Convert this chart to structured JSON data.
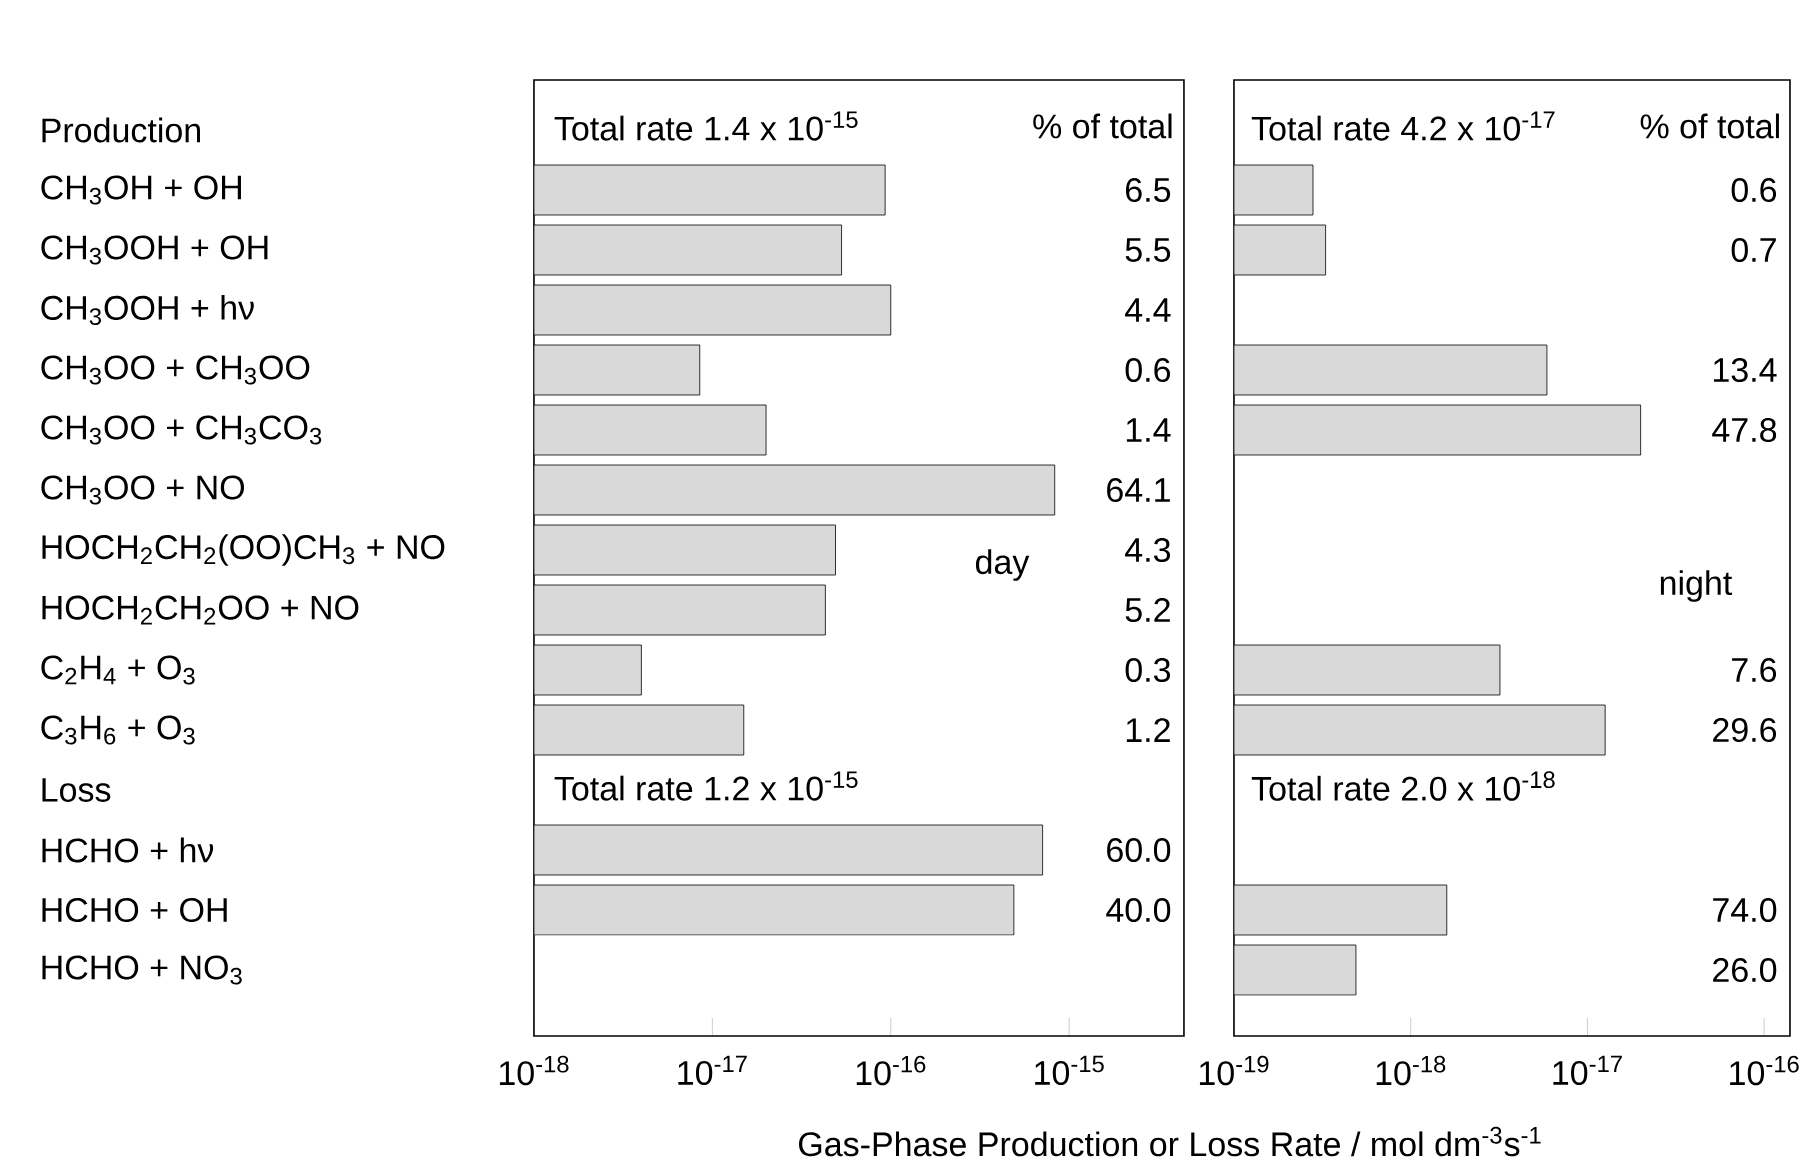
{
  "chart_data": [
    {
      "type": "bar",
      "orientation": "horizontal",
      "log": "x",
      "color": "#d9d9d9",
      "categories": [
        "Production",
        "CH$_{3}$OH + OH",
        "CH$_{3}$OOH + OH",
        "CH$_{3}$OOH + hν",
        "CH$_{3}$OO + CH$_{3}$OO",
        "CH$_{3}$OO + CH$_{3}$CO$_{3}$",
        "CH$_{3}$OO + NO",
        "HOCH$_{2}$CH$_{2}$(OO)CH$_{3}$ + NO",
        "HOCH$_{2}$CH$_{2}$OO + NO",
        "C$_{2}$H$_{4}$ + O$_{3}$",
        "C$_{3}$H$_{6}$ + O$_{3}$",
        "Loss",
        "HCHO + hν",
        "HCHO + OH",
        "HCHO + NO$_{3}$"
      ],
      "values": [
        null,
        9.3e-17,
        5.3e-17,
        1e-16,
        8.5e-18,
        2e-17,
        8.3e-16,
        4.9e-17,
        4.3e-17,
        4e-18,
        1.5e-17,
        null,
        7.1e-16,
        4.9e-16,
        null
      ],
      "xlim": [
        1e-18,
        4.4e-15
      ],
      "xticks": [
        {
          "value": 1e-18,
          "label": "10$^{-18}$"
        },
        {
          "value": 1e-17,
          "label": "10$^{-17}$"
        },
        {
          "value": 1e-16,
          "label": "10$^{-16}$"
        },
        {
          "value": 1e-15,
          "label": "10$^{-15}$"
        }
      ],
      "xlabel": "Gas-Phase Production or Loss Rate / mol dm$^{-3}$s$^{-1}$",
      "annotations": [
        "Total rate 1.4 x 10$^{-15}$",
        "% of total",
        "day",
        "Total rate 1.2 x 10$^{-15}$",
        "6.5",
        "5.5",
        "4.4",
        "0.6",
        "1.4",
        "64.1",
        "4.3",
        "5.2",
        "0.3",
        "1.2",
        "60.0",
        "40.0"
      ]
    },
    {
      "type": "bar",
      "orientation": "horizontal",
      "log": "x",
      "tick_labels": "x",
      "color": "#d9d9d9",
      "values": [
        null,
        2.8e-19,
        3.3e-19,
        null,
        5.9e-18,
        2e-17,
        null,
        null,
        null,
        3.2e-18,
        1.26e-17,
        null,
        null,
        1.6e-18,
        4.9e-19
      ],
      "xlim": [
        1e-19,
        1.4e-16
      ],
      "xticks": [
        {
          "value": 1e-19,
          "label": "10$^{-19}$"
        },
        {
          "value": 1e-18,
          "label": "10$^{-18}$"
        },
        {
          "value": 1e-17,
          "label": "10$^{-17}$"
        },
        {
          "value": 1e-16,
          "label": "10$^{-16}$"
        }
      ],
      "annotations": [
        "Total rate 4.2 x 10$^{-17}$",
        "% of total",
        "night",
        "Total rate 2.0 x 10$^{-18}$",
        "0.6",
        "0.7",
        "13.4",
        "47.8",
        "7.6",
        "29.6",
        "74.0",
        "26.0"
      ]
    }
  ]
}
